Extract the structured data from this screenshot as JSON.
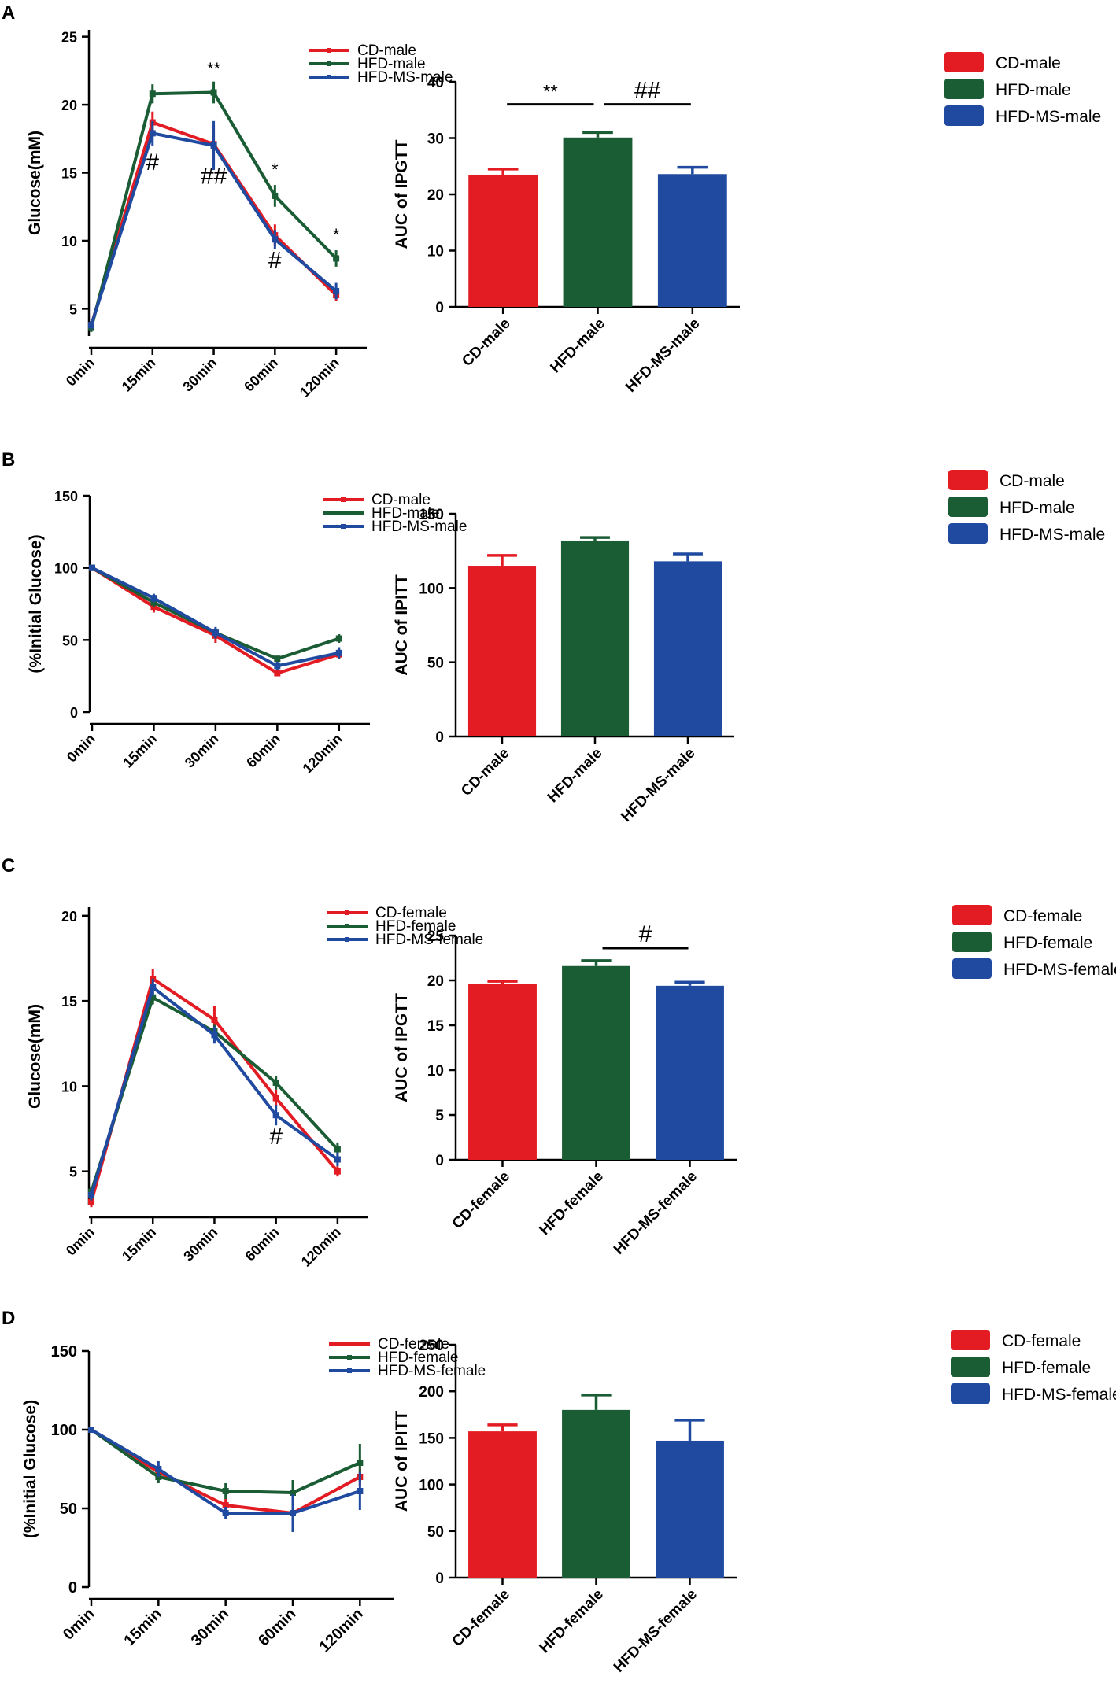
{
  "colors": {
    "cd": "#e31b23",
    "hfd": "#1a5c34",
    "hfdms": "#1f4aa0",
    "axis": "#000000"
  },
  "chart_data": [
    {
      "panel": "A",
      "type": "line",
      "categories": [
        "0min",
        "15min",
        "30min",
        "60min",
        "120min"
      ],
      "ylabel": "Glucose(mM)",
      "ylim": [
        3,
        25.5
      ],
      "yticks": [
        5,
        10,
        15,
        20,
        25
      ],
      "legend": [
        "CD-male",
        "HFD-male",
        "HFD-MS-male"
      ],
      "legend_position": "top-right",
      "series": [
        {
          "name": "CD-male",
          "values": [
            3.8,
            18.7,
            17.1,
            10.4,
            6.0
          ],
          "errors": [
            0.3,
            0.8,
            1.4,
            0.8,
            0.4
          ]
        },
        {
          "name": "HFD-male",
          "values": [
            3.6,
            20.8,
            20.9,
            13.3,
            8.7
          ],
          "errors": [
            0.3,
            0.7,
            0.8,
            0.8,
            0.6
          ]
        },
        {
          "name": "HFD-MS-male",
          "values": [
            3.8,
            17.9,
            17.0,
            10.1,
            6.3
          ],
          "errors": [
            0.3,
            0.9,
            1.8,
            0.7,
            0.6
          ]
        }
      ],
      "annotations": [
        {
          "text": "#",
          "category": "15min",
          "y": 15.2
        },
        {
          "text": "**",
          "category": "30min",
          "y": 22.2
        },
        {
          "text": "##",
          "category": "30min",
          "y": 14.2
        },
        {
          "text": "*",
          "category": "60min",
          "y": 14.8
        },
        {
          "text": "#",
          "category": "60min",
          "y": 8.0
        },
        {
          "text": "*",
          "category": "120min",
          "y": 10.0
        }
      ]
    },
    {
      "panel": "A",
      "type": "bar",
      "categories": [
        "CD-male",
        "HFD-male",
        "HFD-MS-male"
      ],
      "values": [
        23.5,
        30.1,
        23.6
      ],
      "errors": [
        1.0,
        0.9,
        1.2
      ],
      "ylabel": "AUC of IPGTT",
      "ylim": [
        0,
        40
      ],
      "yticks": [
        0,
        10,
        20,
        30,
        40
      ],
      "legend": [
        "CD-male",
        "HFD-male",
        "HFD-MS-male"
      ],
      "legend_position": "top-right",
      "significance": [
        {
          "text": "**",
          "from": 0,
          "to": 1,
          "y": 36
        },
        {
          "text": "##",
          "from": 1,
          "to": 2,
          "y": 36
        }
      ]
    },
    {
      "panel": "B",
      "type": "line",
      "categories": [
        "0min",
        "15min",
        "30min",
        "60min",
        "120min"
      ],
      "ylabel": "(%Initial  Glucose)",
      "ylim": [
        0,
        150
      ],
      "yticks": [
        0,
        50,
        100,
        150
      ],
      "legend": [
        "CD-male",
        "HFD-male",
        "HFD-MS-male"
      ],
      "legend_position": "top-right",
      "series": [
        {
          "name": "CD-male",
          "values": [
            100,
            73,
            53,
            27,
            40
          ],
          "errors": [
            1,
            4,
            5,
            2,
            3
          ]
        },
        {
          "name": "HFD-male",
          "values": [
            100,
            76,
            55,
            37,
            51
          ],
          "errors": [
            1,
            3,
            3,
            2,
            3
          ]
        },
        {
          "name": "HFD-MS-male",
          "values": [
            100,
            79,
            55,
            32,
            41
          ],
          "errors": [
            1,
            3,
            4,
            3,
            4
          ]
        }
      ]
    },
    {
      "panel": "B",
      "type": "bar",
      "categories": [
        "CD-male",
        "HFD-male",
        "HFD-MS-male"
      ],
      "values": [
        115,
        132,
        118
      ],
      "errors": [
        7,
        2,
        5
      ],
      "ylabel": "AUC of IPITT",
      "ylim": [
        0,
        150
      ],
      "yticks": [
        0,
        50,
        100,
        150
      ],
      "legend": [
        "CD-male",
        "HFD-male",
        "HFD-MS-male"
      ],
      "legend_position": "top-right"
    },
    {
      "panel": "C",
      "type": "line",
      "categories": [
        "0min",
        "15min",
        "30min",
        "60min",
        "120min"
      ],
      "ylabel": "Glucose(mM)",
      "ylim": [
        3,
        20.5
      ],
      "yticks": [
        5,
        10,
        15,
        20
      ],
      "legend": [
        "CD-female",
        "HFD-female",
        "HFD-MS-female"
      ],
      "legend_position": "top-right",
      "series": [
        {
          "name": "CD-female",
          "values": [
            3.2,
            16.3,
            13.9,
            9.3,
            5.0
          ],
          "errors": [
            0.3,
            0.6,
            0.8,
            0.5,
            0.3
          ]
        },
        {
          "name": "HFD-female",
          "values": [
            3.8,
            15.2,
            13.2,
            10.2,
            6.3
          ],
          "errors": [
            0.3,
            0.4,
            0.4,
            0.4,
            0.4
          ]
        },
        {
          "name": "HFD-MS-female",
          "values": [
            3.6,
            15.8,
            13.0,
            8.3,
            5.7
          ],
          "errors": [
            0.3,
            0.5,
            0.5,
            0.6,
            0.4
          ]
        }
      ],
      "annotations": [
        {
          "text": "#",
          "category": "60min",
          "y": 6.6
        }
      ]
    },
    {
      "panel": "C",
      "type": "bar",
      "categories": [
        "CD-female",
        "HFD-female",
        "HFD-MS-female"
      ],
      "values": [
        19.6,
        21.6,
        19.4
      ],
      "errors": [
        0.3,
        0.6,
        0.4
      ],
      "ylabel": "AUC of IPGTT",
      "ylim": [
        0,
        25
      ],
      "yticks": [
        0,
        5,
        10,
        15,
        20,
        25
      ],
      "legend": [
        "CD-female",
        "HFD-female",
        "HFD-MS-female"
      ],
      "legend_position": "top-right",
      "significance": [
        {
          "text": "#",
          "from": 1,
          "to": 2,
          "y": 23.6
        }
      ]
    },
    {
      "panel": "D",
      "type": "line",
      "categories": [
        "0min",
        "15min",
        "30min",
        "60min",
        "120min"
      ],
      "ylabel": "(%Initial  Glucose)",
      "ylim": [
        0,
        150
      ],
      "yticks": [
        0,
        50,
        100,
        150
      ],
      "legend": [
        "CD-female",
        "HFD-female",
        "HFD-MS-female"
      ],
      "legend_position": "top-right",
      "series": [
        {
          "name": "CD-female",
          "values": [
            100,
            73,
            52,
            47,
            70
          ],
          "errors": [
            1,
            4,
            4,
            5,
            6
          ]
        },
        {
          "name": "HFD-female",
          "values": [
            100,
            70,
            61,
            60,
            79
          ],
          "errors": [
            1,
            4,
            5,
            8,
            12
          ]
        },
        {
          "name": "HFD-MS-female",
          "values": [
            100,
            75,
            47,
            47,
            61
          ],
          "errors": [
            1,
            5,
            4,
            12,
            12
          ]
        }
      ]
    },
    {
      "panel": "D",
      "type": "bar",
      "categories": [
        "CD-female",
        "HFD-female",
        "HFD-MS-female"
      ],
      "values": [
        157,
        180,
        147
      ],
      "errors": [
        7,
        16,
        22
      ],
      "ylabel": "AUC of IPITT",
      "ylim": [
        0,
        250
      ],
      "yticks": [
        0,
        50,
        100,
        150,
        200,
        250
      ],
      "legend": [
        "CD-female",
        "HFD-female",
        "HFD-MS-female"
      ],
      "legend_position": "top-right"
    }
  ]
}
